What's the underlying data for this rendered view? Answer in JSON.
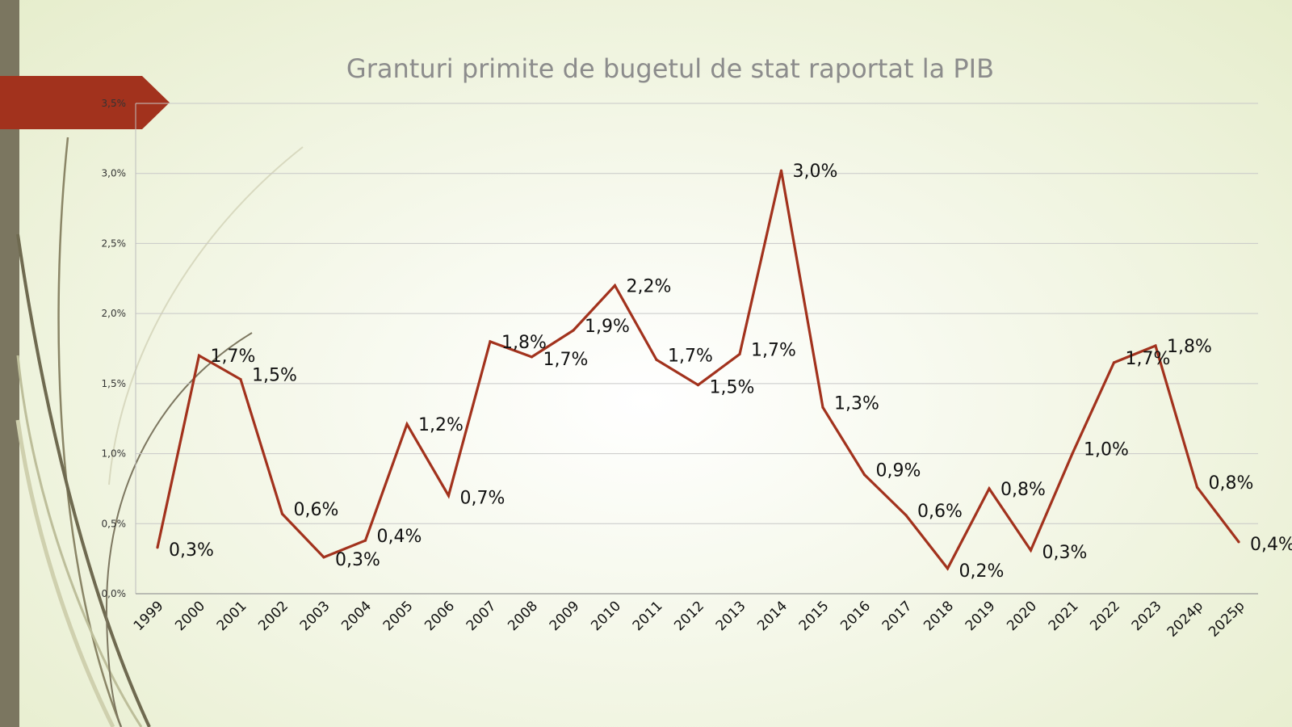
{
  "chart_data": {
    "type": "line",
    "title": "Granturi primite de bugetul de stat raportat la PIB",
    "categories": [
      "1999",
      "2000",
      "2001",
      "2002",
      "2003",
      "2004",
      "2005",
      "2006",
      "2007",
      "2008",
      "2009",
      "2010",
      "2011",
      "2012",
      "2013",
      "2014",
      "2015",
      "2016",
      "2017",
      "2018",
      "2019",
      "2020",
      "2021",
      "2022",
      "2023",
      "2024p",
      "2025p"
    ],
    "series": [
      {
        "values": [
          0.33,
          1.7,
          1.53,
          0.57,
          0.26,
          0.38,
          1.21,
          0.7,
          1.8,
          1.69,
          1.88,
          2.2,
          1.67,
          1.49,
          1.71,
          3.02,
          1.33,
          0.85,
          0.56,
          0.18,
          0.75,
          0.31,
          1.0,
          1.65,
          1.77,
          0.76,
          0.37
        ],
        "labels": [
          "0,3%",
          "1,7%",
          "1,5%",
          "0,6%",
          "0,3%",
          "0,4%",
          "1,2%",
          "0,7%",
          "1,8%",
          "1,7%",
          "1,9%",
          "2,2%",
          "1,7%",
          "1,5%",
          "1,7%",
          "3,0%",
          "1,3%",
          "0,9%",
          "0,6%",
          "0,2%",
          "0,8%",
          "0,3%",
          "1,0%",
          "1,7%",
          "1,8%",
          "0,8%",
          "0,4%"
        ],
        "color": "#a2321d"
      }
    ],
    "ylim": [
      0,
      3.5
    ],
    "yticks": [
      "0,0%",
      "0,5%",
      "1,0%",
      "1,5%",
      "2,0%",
      "2,5%",
      "3,0%",
      "3,5%"
    ],
    "grid": true,
    "legend": "none",
    "xlabel": "",
    "ylabel": ""
  },
  "theme": {
    "accent": "#a2321d",
    "side_bar": "#7b7660",
    "gridline": "#c8c8c8"
  }
}
